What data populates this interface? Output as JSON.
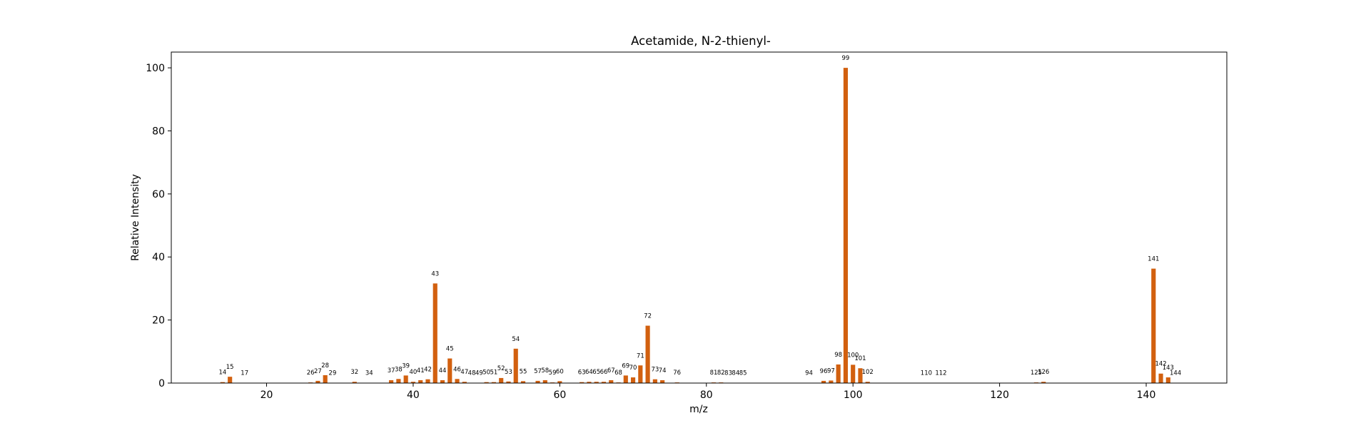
{
  "chart_data": {
    "type": "bar",
    "title": "Acetamide, N-2-thienyl-",
    "xlabel": "m/z",
    "ylabel": "Relative Intensity",
    "xlim": [
      7,
      151
    ],
    "ylim": [
      0,
      105
    ],
    "xticks": [
      20,
      40,
      60,
      80,
      100,
      120,
      140
    ],
    "yticks": [
      0,
      20,
      40,
      60,
      80,
      100
    ],
    "grid": false,
    "bar_color": "#d2600f",
    "x": [
      14,
      15,
      17,
      26,
      27,
      28,
      29,
      32,
      34,
      37,
      38,
      39,
      40,
      41,
      42,
      43,
      44,
      45,
      46,
      47,
      48,
      49,
      50,
      51,
      52,
      53,
      54,
      55,
      57,
      58,
      59,
      60,
      63,
      64,
      65,
      66,
      67,
      68,
      69,
      70,
      71,
      72,
      73,
      74,
      76,
      81,
      82,
      83,
      84,
      85,
      94,
      96,
      97,
      98,
      99,
      100,
      101,
      102,
      110,
      112,
      125,
      126,
      141,
      142,
      143,
      144
    ],
    "values": [
      0.3,
      2.0,
      0.1,
      0.2,
      0.7,
      2.5,
      0.1,
      0.4,
      0.1,
      0.9,
      1.3,
      2.4,
      0.4,
      0.9,
      1.2,
      31.6,
      0.9,
      7.8,
      1.3,
      0.4,
      0.1,
      0.1,
      0.3,
      0.3,
      1.6,
      0.5,
      10.9,
      0.6,
      0.7,
      0.9,
      0.2,
      0.6,
      0.3,
      0.4,
      0.4,
      0.4,
      0.9,
      0.2,
      2.4,
      1.8,
      5.6,
      18.2,
      1.2,
      0.9,
      0.2,
      0.2,
      0.2,
      0.1,
      0.1,
      0.1,
      0.1,
      0.7,
      0.8,
      5.9,
      100.0,
      5.8,
      4.7,
      0.4,
      0.1,
      0.1,
      0.2,
      0.4,
      36.3,
      3.0,
      1.8,
      0.1
    ],
    "labels": [
      "14",
      "15",
      "17",
      "26",
      "27",
      "28",
      "29",
      "32",
      "34",
      "37",
      "38",
      "39",
      "40",
      "41",
      "42",
      "43",
      "44",
      "45",
      "46",
      "47",
      "48",
      "49",
      "50",
      "51",
      "52",
      "53",
      "54",
      "55",
      "57",
      "58",
      "59",
      "60",
      "63",
      "64",
      "65",
      "66",
      "67",
      "68",
      "69",
      "70",
      "71",
      "72",
      "73",
      "74",
      "76",
      "81",
      "82",
      "83",
      "84",
      "85",
      "94",
      "96",
      "97",
      "98",
      "99",
      "100",
      "101",
      "102",
      "110",
      "112",
      "125",
      "126",
      "141",
      "142",
      "143",
      "144"
    ]
  }
}
